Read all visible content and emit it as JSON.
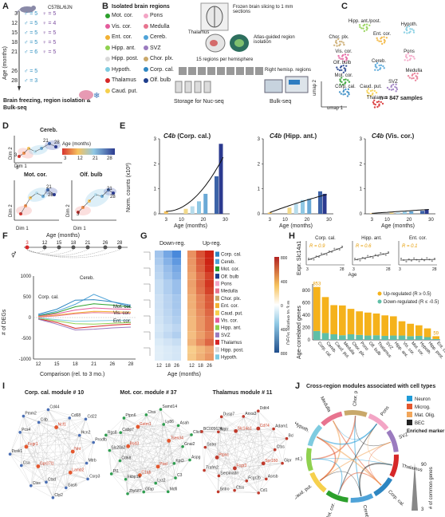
{
  "figure": {
    "panel_labels": [
      "A",
      "B",
      "C",
      "D",
      "E",
      "F",
      "G",
      "H",
      "I",
      "J"
    ]
  },
  "panelA": {
    "strain": "C57BL/6JN",
    "age_axis_label": "Age (months)",
    "rows": [
      {
        "age": "3",
        "m": "= 5",
        "f": "= 5"
      },
      {
        "age": "12",
        "m": "= 5",
        "f": "= 4"
      },
      {
        "age": "15",
        "m": "= 5",
        "f": "= 5"
      },
      {
        "age": "18",
        "m": "= 5",
        "f": "= 5"
      },
      {
        "age": "21",
        "m": "= 6",
        "f": "= 5"
      },
      {
        "age": "26",
        "m": "= 5",
        "f": ""
      },
      {
        "age": "28",
        "m": "= 3",
        "f": ""
      }
    ],
    "caption": "Brain freezing, region isolation & Bulk-seq"
  },
  "panelB": {
    "title": "Isolated brain regions",
    "regions_left": [
      {
        "name": "Mot. cor.",
        "color": "#2ca02c"
      },
      {
        "name": "Vis. cor.",
        "color": "#e45b9b"
      },
      {
        "name": "Ent. cor.",
        "color": "#f2b134"
      },
      {
        "name": "Hipp. ant.",
        "color": "#8fd14f"
      },
      {
        "name": "Hipp. post.",
        "color": "#d9d9d9"
      },
      {
        "name": "Hypoth.",
        "color": "#7ecbe0"
      },
      {
        "name": "Thalamus",
        "color": "#d62728"
      },
      {
        "name": "Caud. put.",
        "color": "#f6d04d"
      }
    ],
    "regions_right": [
      {
        "name": "Pons",
        "color": "#f3a5c5"
      },
      {
        "name": "Medulla",
        "color": "#e8748f"
      },
      {
        "name": "Cereb.",
        "color": "#4fa3d8"
      },
      {
        "name": "SVZ",
        "color": "#9b7bbf"
      },
      {
        "name": "Chor. plx.",
        "color": "#c9a86a"
      },
      {
        "name": "Corp. cal.",
        "color": "#2e86c1"
      },
      {
        "name": "Olf. bulb",
        "color": "#1f3e8c"
      }
    ],
    "workflow": {
      "step1": "Frozen brain slicing to 1 mm sections",
      "step2": "Atlas-guided region isolation",
      "thalamus": "Thalamus",
      "step3": "15 regions per hemisphere",
      "right_hemi": "Right hemisp. regions",
      "storage": "Storage for Nuc-seq",
      "bulk": "Bulk-seq"
    }
  },
  "panelC": {
    "labels": [
      "Hipp. ant./post.",
      "Hypoth.",
      "Ent. cor.",
      "Chor. plx.",
      "Vis. cor.",
      "Pons",
      "Olf. bulb",
      "Cereb.",
      "Medulla",
      "Mot. cor.",
      "Corp. cal.",
      "Caud. put.",
      "SVZ",
      "Thalamus"
    ],
    "xlabel": "umap 1",
    "ylabel": "umap 2",
    "n_text": "n = 847 samples"
  },
  "panelD": {
    "plots": [
      "Cereb.",
      "Mot. cor.",
      "Olf. bulb"
    ],
    "xlabel": "Dim 1",
    "ylabel": "Dim 2",
    "colorbar_title": "Age (months)",
    "colorbar_ticks": [
      "3",
      "12",
      "21",
      "28"
    ],
    "ages_shown": [
      "3",
      "21",
      "28"
    ]
  },
  "panelE": {
    "plots": [
      {
        "title": "C4b",
        "region": "(Corp. cal.)",
        "ymax": "3",
        "yticks": [
          "0",
          "1",
          "2",
          "3"
        ]
      },
      {
        "title": "C4b",
        "region": "(Hipp. ant.)",
        "ymax": "3",
        "yticks": [
          "0",
          "1",
          "2",
          "3"
        ]
      },
      {
        "title": "C4b",
        "region": "(Vis. cor.)",
        "ymax": "3",
        "yticks": [
          "0",
          "1",
          "2",
          "3"
        ]
      }
    ],
    "ylabel": "Norm. counts (x10³)",
    "xlabel": "Age (months)",
    "xticks": [
      "3",
      "10",
      "20",
      "30"
    ]
  },
  "panelF": {
    "age_label": "Age (months)",
    "timeline_ages": [
      "3",
      "12",
      "15",
      "18",
      "21",
      "26",
      "28"
    ],
    "ylabel": "# of DEGs",
    "xlabel": "Comparison (rel. to 3 mo.)",
    "xticks": [
      "12",
      "15",
      "18",
      "21",
      "26",
      "28"
    ],
    "yticks": [
      "1000",
      "500",
      "0",
      "-500",
      "-1000"
    ],
    "line_labels": [
      "Cereb.",
      "Corp. cal.",
      "Mot. cor.",
      "Vis. cor.",
      "Ent. cor."
    ]
  },
  "panelG": {
    "down_label": "Down-reg.",
    "up_label": "Up-reg.",
    "xlabel": "Age (months)",
    "xticks": [
      "12",
      "18",
      "26"
    ],
    "regions": [
      "Corp. cal.",
      "Cereb.",
      "Mot. cor.",
      "Olf. bulb",
      "Pons",
      "Medulla",
      "Chor. plx.",
      "Ent. cor.",
      "Caud. put.",
      "Vis. cor.",
      "Hipp. ant.",
      "SVZ",
      "Thalamus",
      "Hipp. post.",
      "Hypoth."
    ],
    "colorbar_label": "DEGs relative to 3 m",
    "colorbar_ticks": [
      "800",
      "400",
      "0",
      "400",
      "800"
    ]
  },
  "panelH": {
    "mini": [
      {
        "title": "Corp. cal.",
        "r": "R = 0.9"
      },
      {
        "title": "Hipp. ant.",
        "r": "R = 0.6"
      },
      {
        "title": "Ent. cor.",
        "r": "R = 0.1"
      }
    ],
    "mini_ylabel": "Expr. Slc14a1",
    "mini_xlabel": "Age",
    "mini_xticks": [
      "3",
      "28"
    ],
    "ylabel": "Age-correlated genes",
    "yticks": [
      "0",
      "200",
      "400",
      "600",
      "800"
    ],
    "legend_up": "Up-regulated (R ≥ 0.5)",
    "legend_down": "Down-regulated (R ≤ -0.5)",
    "top_value": "853",
    "bottom_value": "59",
    "chart_data": {
      "type": "bar",
      "categories": [
        "Corp. cal.",
        "Cereb.",
        "Caud. put.",
        "Medulla",
        "Chor. plx.",
        "Pons",
        "Olf. bulb",
        "Thalamus",
        "SVZ",
        "Hipp. ant.",
        "Vis. cor.",
        "Mot. cor.",
        "Hypoth.",
        "Hipp. post.",
        "Ent. cor."
      ],
      "series": [
        {
          "name": "Up-regulated (R ≥ 0.5)",
          "values": [
            710,
            580,
            470,
            480,
            410,
            380,
            370,
            350,
            330,
            310,
            230,
            200,
            170,
            140,
            45
          ]
        },
        {
          "name": "Down-regulated (R ≤ -0.5)",
          "values": [
            143,
            110,
            90,
            75,
            90,
            80,
            70,
            75,
            65,
            70,
            70,
            60,
            65,
            45,
            14
          ]
        }
      ],
      "ylim": [
        0,
        900
      ]
    }
  },
  "panelI": {
    "modules": [
      {
        "title": "Corp. cal. module # 10",
        "color": "#4a6fb5",
        "genes": [
          "Nnt",
          "Gpr37l1",
          "Ncf1",
          "Lamb2",
          "Fcgr1",
          "Hcn2",
          "Ctsd",
          "C4b",
          "Mtrb",
          "Csa",
          "Cd68",
          "Gas6",
          "Pcs4",
          "Prodfb",
          "Ctss",
          "Cd44",
          "Csrp3",
          "Pcsk1",
          "Cd22",
          "Ctp2",
          "Pmm2"
        ]
      },
      {
        "title": "Mot. cor. module # 37",
        "color": "#2e9e4f",
        "genes": [
          "Pisd",
          "Bsd3",
          "Tsen34",
          "C1qb",
          "Gstm1",
          "Kpt3",
          "Cd68",
          "Ly86",
          "Lyz2",
          "Cabp7",
          "Gnai2",
          "Fkbp1a",
          "Ctss",
          "C3",
          "Slc20a2",
          "Asah",
          "Gfap",
          "Ptpn6",
          "Aspg",
          "Pl1",
          "Samd14",
          "Mdfi",
          "Rgs8",
          "Clic6",
          "Zfp587"
        ]
      },
      {
        "title": "Thalamus module # 11",
        "color": "#c0392b",
        "genes": [
          "Fcgr3",
          "Slc14a1",
          "Spr160",
          "Ptpnc",
          "Cd74",
          "Fcgr2b",
          "Nlprr",
          "Ctss",
          "Serpina3n",
          "Anxa3",
          "Asrsb",
          "Sntro",
          "Adam1",
          "Ctss",
          "Dusp7",
          "Gipr",
          "Trafm2",
          "Ddit4",
          "Cd1",
          "BC005624",
          "Bcl2a1a",
          "Sntro"
        ]
      }
    ]
  },
  "panelJ": {
    "title": "Cross-region modules associated with cell types",
    "legend": [
      {
        "name": "Neuron",
        "color": "#1f9bd7"
      },
      {
        "name": "Microg.",
        "color": "#e4572e"
      },
      {
        "name": "Mat. Olig.",
        "color": "#f2a65a"
      },
      {
        "name": "BEC",
        "color": "#222222"
      }
    ],
    "enriched_label": "Enriched marker genes",
    "scale_label": "# of common genes",
    "scale_ticks": [
      "90",
      "3"
    ],
    "sectors": [
      "Medulla",
      "Chor. plx.",
      "Pons",
      "SVZ",
      "Thalamus",
      "Corp. cal.",
      "Cereb.",
      "Mot. cor.",
      "Caud. put.",
      "Hipp. (ant.)",
      "Hypoth."
    ]
  }
}
